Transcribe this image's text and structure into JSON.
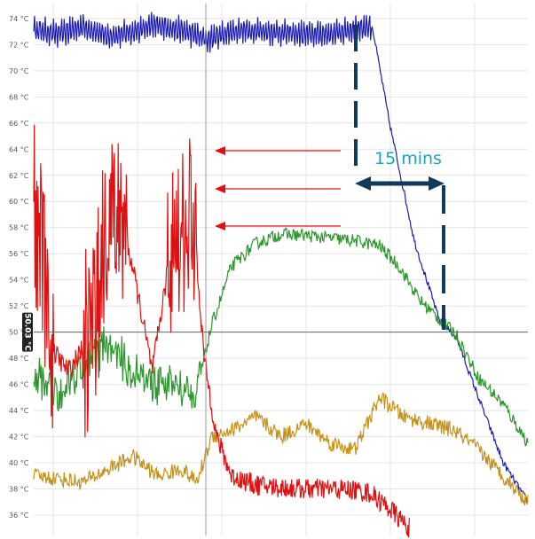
{
  "chart_data": {
    "type": "line",
    "title": "",
    "xlabel": "",
    "ylabel": "",
    "y_unit": "°C",
    "ylim": [
      35,
      75
    ],
    "grid": true,
    "y_ticks": [
      "36 °C",
      "38 °C",
      "40 °C",
      "42 °C",
      "44 °C",
      "46 °C",
      "48 °C",
      "50 °C",
      "52 °C",
      "54 °C",
      "56 °C",
      "58 °C",
      "60 °C",
      "62 °C",
      "64 °C",
      "66 °C",
      "68 °C",
      "70 °C",
      "72 °C",
      "74 °C"
    ],
    "series": [
      {
        "color": "#1c1cb0",
        "description_points": [
          [
            0,
            73.2
          ],
          [
            0.05,
            72.8
          ],
          [
            0.1,
            73.4
          ],
          [
            0.15,
            72.6
          ],
          [
            0.2,
            73.0
          ],
          [
            0.25,
            73.5
          ],
          [
            0.3,
            73.1
          ],
          [
            0.35,
            72.4
          ],
          [
            0.4,
            73.0
          ],
          [
            0.45,
            73.1
          ],
          [
            0.5,
            72.9
          ],
          [
            0.55,
            72.8
          ],
          [
            0.6,
            72.8
          ],
          [
            0.65,
            73.2
          ],
          [
            0.685,
            73.4
          ],
          [
            0.72,
            66.0
          ],
          [
            0.77,
            57.0
          ],
          [
            0.82,
            51.0
          ],
          [
            0.855,
            49.6
          ],
          [
            0.9,
            45.0
          ],
          [
            0.95,
            40.0
          ],
          [
            1.0,
            37.0
          ]
        ]
      },
      {
        "color": "#2d962d",
        "description_points": [
          [
            0,
            46.5
          ],
          [
            0.05,
            45.5
          ],
          [
            0.1,
            47.5
          ],
          [
            0.15,
            49.0
          ],
          [
            0.2,
            47.0
          ],
          [
            0.25,
            46.0
          ],
          [
            0.3,
            46.0
          ],
          [
            0.33,
            45.5
          ],
          [
            0.36,
            50.5
          ],
          [
            0.4,
            55.0
          ],
          [
            0.45,
            56.8
          ],
          [
            0.5,
            57.5
          ],
          [
            0.55,
            57.4
          ],
          [
            0.6,
            57.2
          ],
          [
            0.65,
            57.0
          ],
          [
            0.7,
            56.6
          ],
          [
            0.74,
            55.0
          ],
          [
            0.78,
            52.5
          ],
          [
            0.82,
            51.0
          ],
          [
            0.855,
            49.8
          ],
          [
            0.9,
            46.5
          ],
          [
            0.95,
            44.5
          ],
          [
            1.0,
            41.5
          ]
        ]
      },
      {
        "color": "#e01010",
        "description_points": [
          [
            0,
            60.0
          ],
          [
            0.02,
            55.0
          ],
          [
            0.04,
            48.5
          ],
          [
            0.07,
            47.0
          ],
          [
            0.12,
            50.0
          ],
          [
            0.16,
            61.0
          ],
          [
            0.2,
            55.0
          ],
          [
            0.24,
            47.0
          ],
          [
            0.28,
            57.0
          ],
          [
            0.32,
            60.0
          ],
          [
            0.345,
            48.0
          ],
          [
            0.37,
            42.0
          ],
          [
            0.4,
            39.0
          ],
          [
            0.45,
            38.3
          ],
          [
            0.5,
            38.1
          ],
          [
            0.55,
            38.0
          ],
          [
            0.6,
            38.0
          ],
          [
            0.65,
            37.9
          ],
          [
            0.68,
            37.7
          ],
          [
            0.72,
            36.5
          ],
          [
            0.76,
            35.0
          ]
        ]
      },
      {
        "color": "#c4921a",
        "description_points": [
          [
            0,
            39.0
          ],
          [
            0.05,
            38.8
          ],
          [
            0.1,
            38.5
          ],
          [
            0.15,
            39.5
          ],
          [
            0.2,
            40.5
          ],
          [
            0.25,
            39.0
          ],
          [
            0.3,
            39.5
          ],
          [
            0.33,
            38.5
          ],
          [
            0.36,
            42.0
          ],
          [
            0.4,
            42.5
          ],
          [
            0.45,
            43.5
          ],
          [
            0.5,
            42.0
          ],
          [
            0.55,
            43.0
          ],
          [
            0.6,
            41.5
          ],
          [
            0.65,
            41.0
          ],
          [
            0.7,
            45.0
          ],
          [
            0.75,
            43.5
          ],
          [
            0.8,
            43.0
          ],
          [
            0.85,
            42.5
          ],
          [
            0.9,
            41.0
          ],
          [
            0.95,
            39.0
          ],
          [
            1.0,
            37.0
          ]
        ]
      }
    ],
    "cursor": {
      "value": 50.0,
      "label": "50.03 °C"
    },
    "annotations": {
      "interval_label": "15 mins"
    }
  },
  "colors": {
    "grid": "#e4e4e4",
    "axis_text": "#555555",
    "arrow": "#e01010",
    "dash": "#123a5a",
    "annotation": "#19a4c0",
    "cursor_bg": "#222222"
  }
}
